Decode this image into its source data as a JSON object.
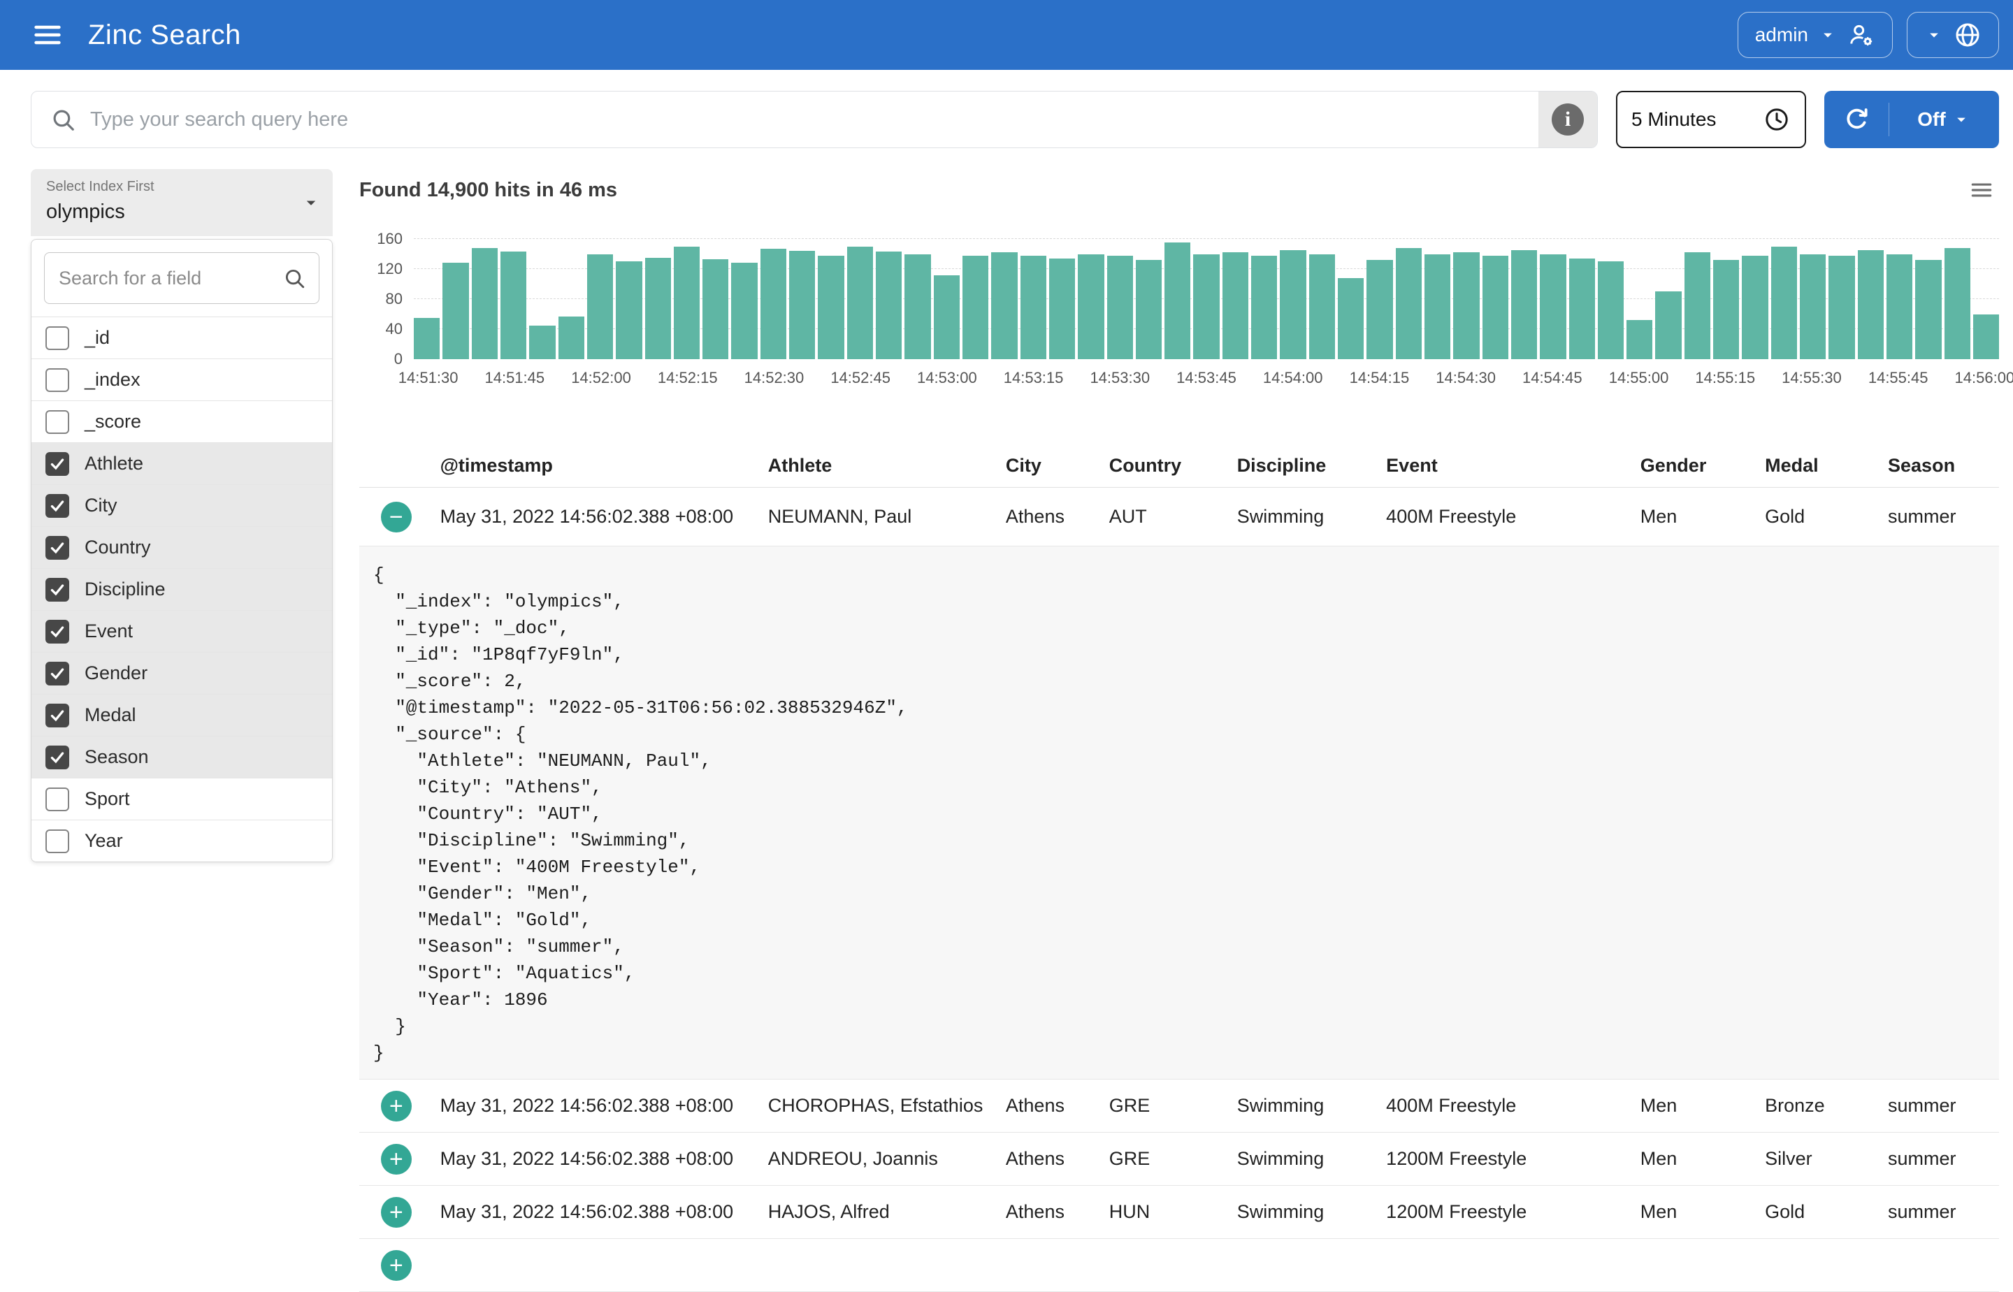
{
  "colors": {
    "navbar_blue": "#2b70c8",
    "histogram_teal": "#5fb6a4",
    "expand_button_teal": "#33a795"
  },
  "navbar": {
    "title": "Zinc Search",
    "user_menu_label": "admin",
    "icons": [
      "menu-icon",
      "caret-down-icon",
      "manage-accounts-icon",
      "globe-icon"
    ]
  },
  "toolbar": {
    "search_placeholder": "Type your search query here",
    "search_value": "",
    "interval_label": "5 Minutes",
    "auto_refresh_label": "Off"
  },
  "sidebar": {
    "index_select": {
      "label": "Select Index First",
      "value": "olympics"
    },
    "field_search_placeholder": "Search for a field",
    "fields": [
      {
        "name": "_id",
        "checked": false
      },
      {
        "name": "_index",
        "checked": false
      },
      {
        "name": "_score",
        "checked": false
      },
      {
        "name": "Athlete",
        "checked": true
      },
      {
        "name": "City",
        "checked": true
      },
      {
        "name": "Country",
        "checked": true
      },
      {
        "name": "Discipline",
        "checked": true
      },
      {
        "name": "Event",
        "checked": true
      },
      {
        "name": "Gender",
        "checked": true
      },
      {
        "name": "Medal",
        "checked": true
      },
      {
        "name": "Season",
        "checked": true
      },
      {
        "name": "Sport",
        "checked": false
      },
      {
        "name": "Year",
        "checked": false
      }
    ]
  },
  "results": {
    "summary": "Found 14,900 hits in 46 ms",
    "columns": [
      "@timestamp",
      "Athlete",
      "City",
      "Country",
      "Discipline",
      "Event",
      "Gender",
      "Medal",
      "Season"
    ],
    "rows": [
      {
        "expand": "minus",
        "expanded": true,
        "values": [
          "May 31, 2022 14:56:02.388 +08:00",
          "NEUMANN, Paul",
          "Athens",
          "AUT",
          "Swimming",
          "400M Freestyle",
          "Men",
          "Gold",
          "summer"
        ]
      },
      {
        "expand": "plus",
        "expanded": false,
        "values": [
          "May 31, 2022 14:56:02.388 +08:00",
          "CHOROPHAS, Efstathios",
          "Athens",
          "GRE",
          "Swimming",
          "400M Freestyle",
          "Men",
          "Bronze",
          "summer"
        ]
      },
      {
        "expand": "plus",
        "expanded": false,
        "values": [
          "May 31, 2022 14:56:02.388 +08:00",
          "ANDREOU, Joannis",
          "Athens",
          "GRE",
          "Swimming",
          "1200M Freestyle",
          "Men",
          "Silver",
          "summer"
        ]
      },
      {
        "expand": "plus",
        "expanded": false,
        "values": [
          "May 31, 2022 14:56:02.388 +08:00",
          "HAJOS, Alfred",
          "Athens",
          "HUN",
          "Swimming",
          "1200M Freestyle",
          "Men",
          "Gold",
          "summer"
        ]
      },
      {
        "expand": "plus",
        "expanded": false,
        "partial": true,
        "values": [
          "",
          "",
          "",
          "",
          "",
          "",
          "",
          "",
          ""
        ]
      }
    ],
    "expanded_json": [
      "{",
      "  \"_index\": \"olympics\",",
      "  \"_type\": \"_doc\",",
      "  \"_id\": \"1P8qf7yF9ln\",",
      "  \"_score\": 2,",
      "  \"@timestamp\": \"2022-05-31T06:56:02.388532946Z\",",
      "  \"_source\": {",
      "    \"Athlete\": \"NEUMANN, Paul\",",
      "    \"City\": \"Athens\",",
      "    \"Country\": \"AUT\",",
      "    \"Discipline\": \"Swimming\",",
      "    \"Event\": \"400M Freestyle\",",
      "    \"Gender\": \"Men\",",
      "    \"Medal\": \"Gold\",",
      "    \"Season\": \"summer\",",
      "    \"Sport\": \"Aquatics\",",
      "    \"Year\": 1896",
      "  }",
      "}"
    ]
  },
  "chart_data": {
    "type": "bar",
    "title": "",
    "xlabel": "",
    "ylabel": "",
    "ylim": [
      0,
      160
    ],
    "y_ticks": [
      0,
      40,
      80,
      120,
      160
    ],
    "grid": "horizontal-dashed",
    "bar_interval_seconds": 5,
    "x_tick_labels": [
      "14:51:30",
      "14:51:45",
      "14:52:00",
      "14:52:15",
      "14:52:30",
      "14:52:45",
      "14:53:00",
      "14:53:15",
      "14:53:30",
      "14:53:45",
      "14:54:00",
      "14:54:15",
      "14:54:30",
      "14:54:45",
      "14:55:00",
      "14:55:15",
      "14:55:30",
      "14:55:45",
      "14:56:00"
    ],
    "values": [
      55,
      128,
      148,
      143,
      45,
      57,
      140,
      130,
      135,
      150,
      133,
      128,
      147,
      144,
      138,
      150,
      143,
      140,
      112,
      138,
      142,
      138,
      134,
      140,
      138,
      132,
      155,
      140,
      142,
      138,
      145,
      140,
      108,
      132,
      148,
      140,
      142,
      138,
      145,
      140,
      134,
      130,
      52,
      90,
      142,
      132,
      138,
      150,
      140,
      138,
      145,
      140,
      132,
      148,
      60
    ]
  }
}
